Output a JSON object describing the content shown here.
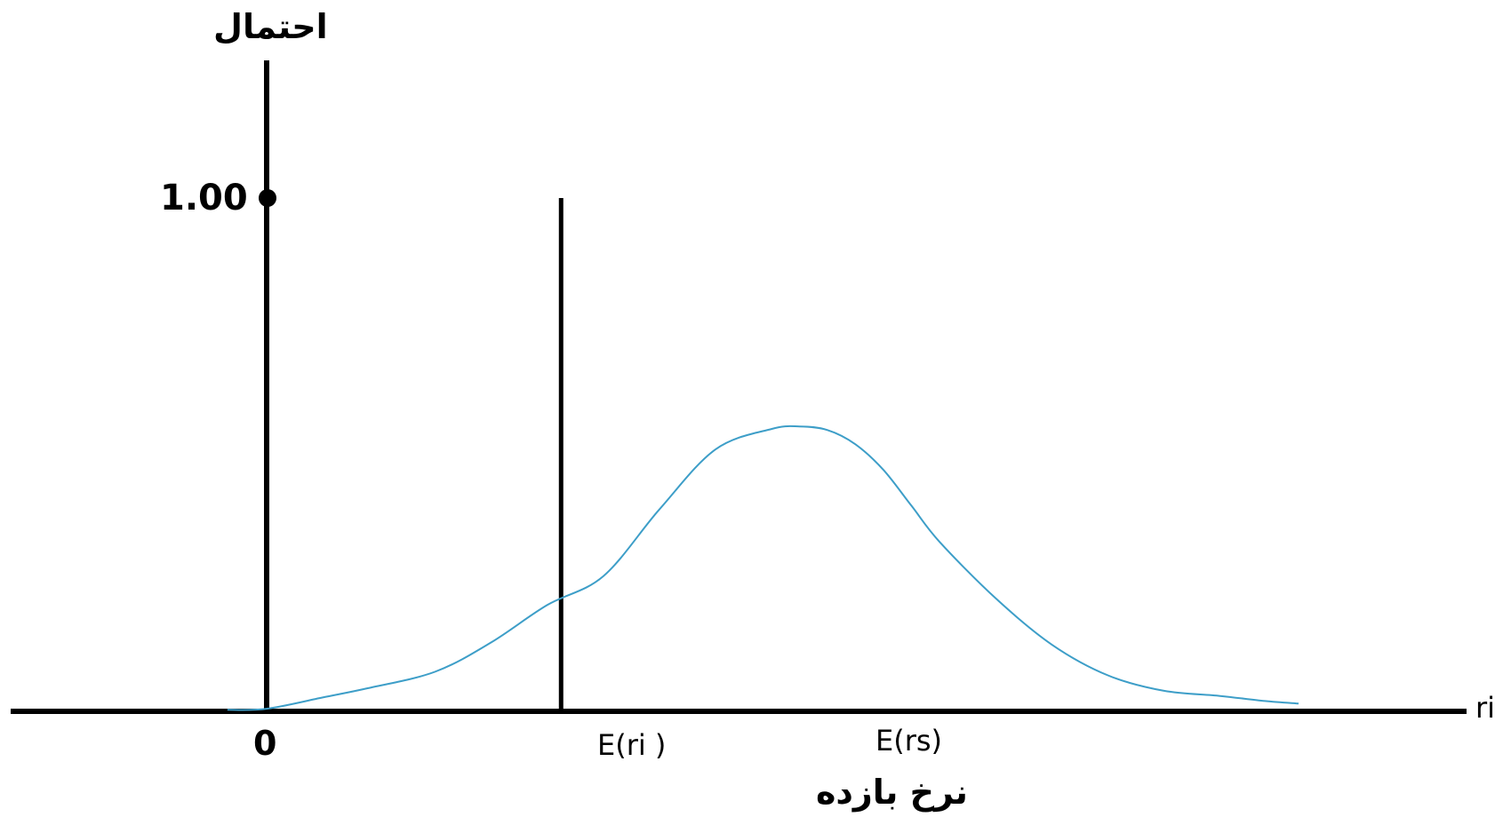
{
  "chart_data": {
    "type": "line",
    "ylabel": "احتمال",
    "xlabel": "نرخ بازده",
    "x_variable_label": "ri",
    "y_tick_labels": [
      "1.00"
    ],
    "x_tick_labels": {
      "origin": "0",
      "expected_ri": "E(ri )",
      "expected_rs": "E(rs)"
    },
    "series": [
      {
        "kind": "certain-return",
        "x": [
          0.525
        ],
        "y": [
          1.0
        ],
        "color": "#000000"
      },
      {
        "kind": "probability-distribution",
        "x": [
          -0.07,
          0.0,
          0.1,
          0.18,
          0.3,
          0.4,
          0.5,
          0.6,
          0.7,
          0.8,
          0.9,
          0.95,
          1.0,
          1.05,
          1.1,
          1.15,
          1.2,
          1.3,
          1.4,
          1.5,
          1.6,
          1.7,
          1.78,
          1.84
        ],
        "y": [
          0.003,
          0.005,
          0.027,
          0.045,
          0.077,
          0.134,
          0.207,
          0.263,
          0.393,
          0.51,
          0.55,
          0.555,
          0.548,
          0.52,
          0.47,
          0.4,
          0.33,
          0.22,
          0.13,
          0.07,
          0.04,
          0.03,
          0.02,
          0.015
        ],
        "color": "#3d9ec8"
      }
    ],
    "xlim": [
      -0.45,
      2.2
    ],
    "ylim": [
      0,
      1.25
    ],
    "grid": false,
    "legend": "none"
  }
}
